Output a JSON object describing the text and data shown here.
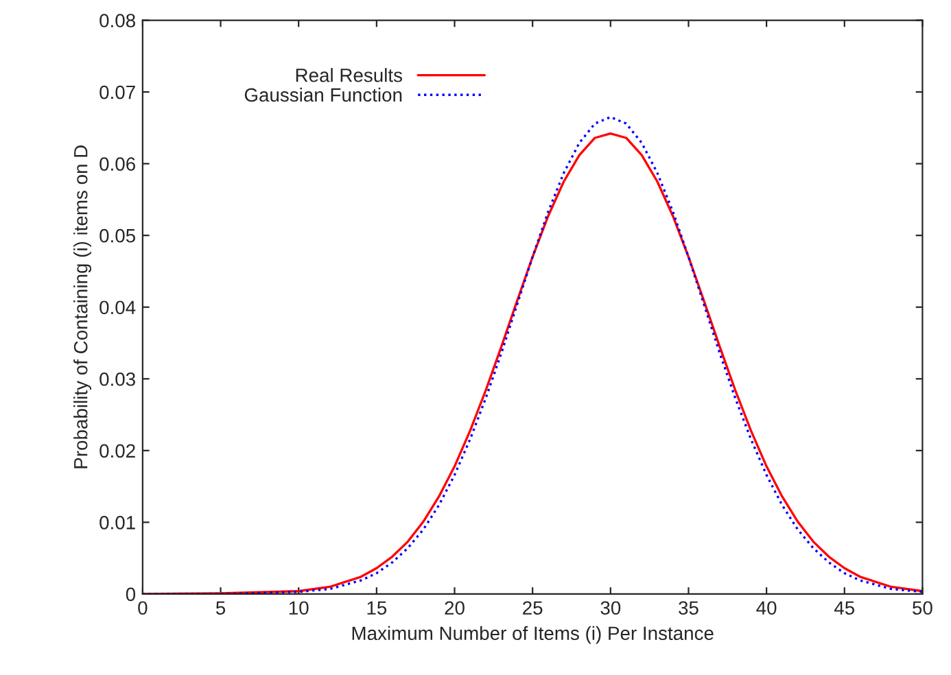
{
  "chart_data": {
    "type": "line",
    "xlabel": "Maximum Number of Items (i) Per Instance",
    "ylabel": "Probability of Containing (i) items on D",
    "x": [
      0,
      5,
      10,
      12,
      14,
      15,
      16,
      17,
      18,
      19,
      20,
      21,
      22,
      23,
      24,
      25,
      26,
      27,
      28,
      29,
      30,
      31,
      32,
      33,
      34,
      35,
      36,
      37,
      38,
      39,
      40,
      41,
      42,
      43,
      44,
      45,
      46,
      48,
      50
    ],
    "series": [
      {
        "name": "Real Results",
        "color": "#ff0000",
        "line_style": "solid",
        "values": [
          0,
          0.0001,
          0.0004,
          0.001,
          0.0024,
          0.0036,
          0.0052,
          0.0073,
          0.0101,
          0.0136,
          0.0178,
          0.0228,
          0.0284,
          0.0345,
          0.0408,
          0.047,
          0.0527,
          0.0575,
          0.0612,
          0.0636,
          0.0642,
          0.0636,
          0.0612,
          0.0575,
          0.0527,
          0.047,
          0.0408,
          0.0345,
          0.0284,
          0.0228,
          0.0178,
          0.0136,
          0.0101,
          0.0073,
          0.0052,
          0.0036,
          0.0024,
          0.001,
          0.0004
        ]
      },
      {
        "name": "Gaussian Function",
        "color": "#0000ff",
        "line_style": "dotted",
        "values": [
          0,
          0,
          0.0003,
          0.0007,
          0.0019,
          0.0029,
          0.0044,
          0.0064,
          0.009,
          0.0124,
          0.0166,
          0.0216,
          0.0273,
          0.0336,
          0.0403,
          0.047,
          0.0533,
          0.0587,
          0.0629,
          0.0656,
          0.0665,
          0.0656,
          0.0629,
          0.0587,
          0.0533,
          0.047,
          0.0403,
          0.0336,
          0.0273,
          0.0216,
          0.0166,
          0.0124,
          0.009,
          0.0064,
          0.0044,
          0.0029,
          0.0019,
          0.0007,
          0.0003
        ]
      }
    ],
    "xlim": [
      0,
      50
    ],
    "xticks": [
      0,
      5,
      10,
      15,
      20,
      25,
      30,
      35,
      40,
      45,
      50
    ],
    "ylim": [
      0,
      0.08
    ],
    "yticks": [
      0,
      0.01,
      0.02,
      0.03,
      0.04,
      0.05,
      0.06,
      0.07,
      0.08
    ],
    "grid": false,
    "legend": "top left",
    "marker": "none"
  }
}
